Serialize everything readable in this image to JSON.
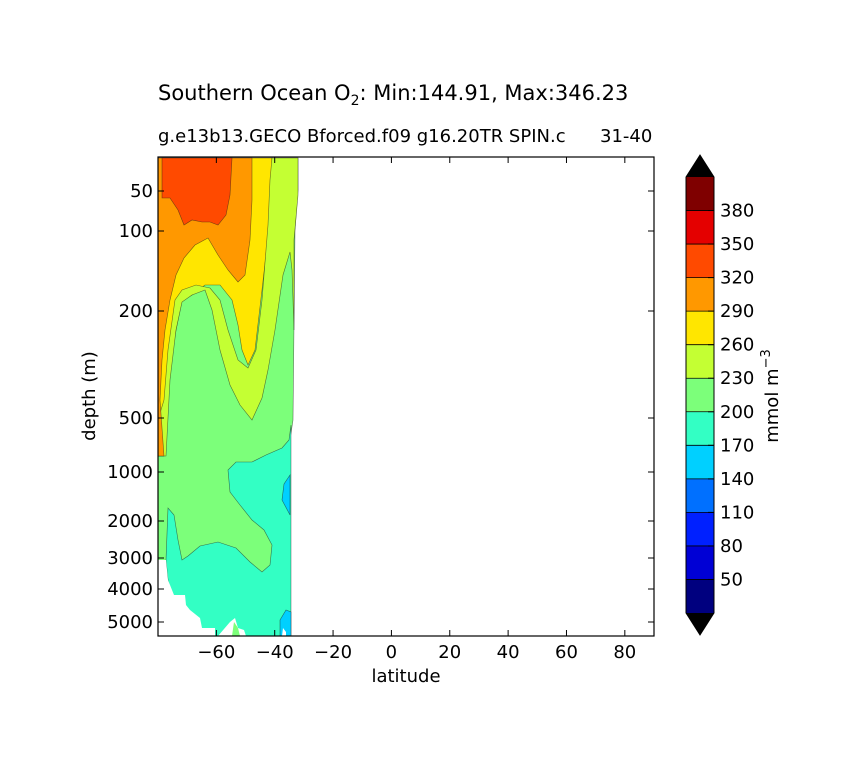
{
  "chart_data": {
    "type": "contourf",
    "title_main": "Southern Ocean O",
    "title_sub": "2",
    "title_rest": ": Min:144.91, Max:346.23",
    "subtitle_left": "g.e13b13.GECO Bforced.f09 g16.20TR SPIN.c",
    "subtitle_overlap": "31-40",
    "xlabel": "latitude",
    "ylabel": "depth (m)",
    "xlim": [
      -80,
      90
    ],
    "ylim_depth": [
      5500,
      25
    ],
    "x_ticks": [
      -60,
      -40,
      -20,
      0,
      20,
      40,
      60,
      80
    ],
    "x_tick_labels": [
      "−60",
      "−40",
      "−20",
      "0",
      "20",
      "40",
      "60",
      "80"
    ],
    "y_ticks": [
      {
        "label": "50",
        "value": 50
      },
      {
        "label": "100",
        "value": 100
      },
      {
        "label": "200",
        "value": 200
      },
      {
        "label": "500",
        "value": 500
      },
      {
        "label": "1000",
        "value": 1000
      },
      {
        "label": "2000",
        "value": 2000
      },
      {
        "label": "3000",
        "value": 3000
      },
      {
        "label": "4000",
        "value": 4000
      },
      {
        "label": "5000",
        "value": 5000
      }
    ],
    "colorbar": {
      "label": "mmol m",
      "label_exp": "−3",
      "levels": [
        20,
        50,
        80,
        110,
        140,
        170,
        200,
        230,
        260,
        290,
        320,
        350,
        380,
        410
      ],
      "tick_labels": [
        "50",
        "80",
        "110",
        "140",
        "170",
        "200",
        "230",
        "260",
        "290",
        "320",
        "350",
        "380"
      ],
      "colors": [
        "#00007f",
        "#0000d5",
        "#0020ff",
        "#0070ff",
        "#00d0ff",
        "#33ffc4",
        "#7cff7a",
        "#c4ff33",
        "#ffe600",
        "#ff9800",
        "#ff4a00",
        "#e40000",
        "#7f0000"
      ],
      "extend_color": "#000000"
    },
    "field_region": {
      "lat_min": -80,
      "lat_max": -34,
      "o2_min": 144.91,
      "o2_max": 346.23
    }
  }
}
